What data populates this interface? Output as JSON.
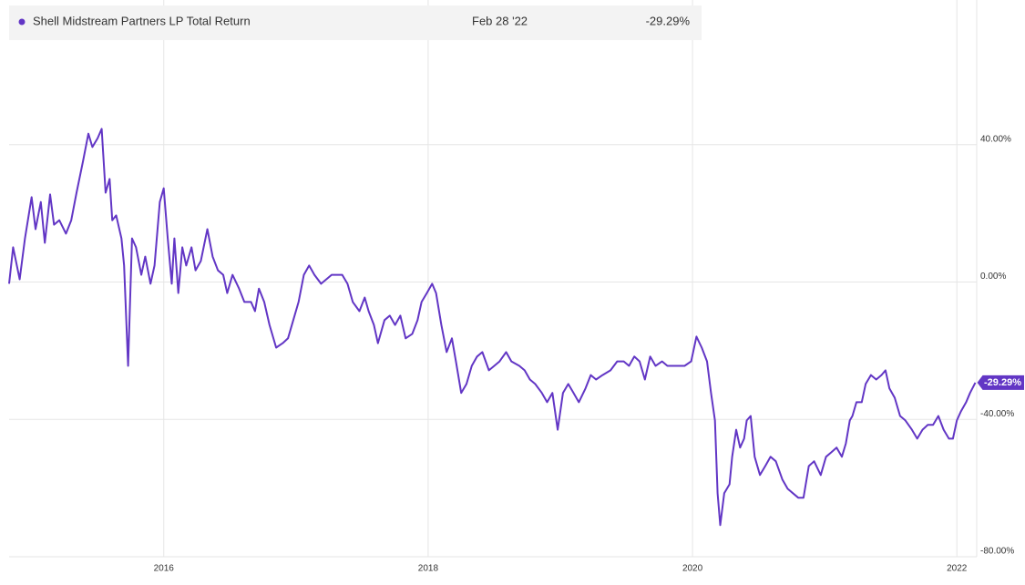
{
  "chart_data": {
    "type": "line",
    "series": [
      {
        "name": "Shell Midstream Partners LP Total Return",
        "color": "#6236c5",
        "end_date": "Feb 28 '22",
        "end_label": "-29.29%",
        "x": [
          2014.83,
          2014.86,
          2014.91,
          2014.95,
          2015.0,
          2015.03,
          2015.07,
          2015.1,
          2015.14,
          2015.17,
          2015.21,
          2015.26,
          2015.3,
          2015.34,
          2015.39,
          2015.43,
          2015.46,
          2015.5,
          2015.53,
          2015.56,
          2015.59,
          2015.61,
          2015.64,
          2015.68,
          2015.7,
          2015.73,
          2015.76,
          2015.79,
          2015.83,
          2015.86,
          2015.9,
          2015.93,
          2015.97,
          2016.0,
          2016.03,
          2016.06,
          2016.08,
          2016.11,
          2016.14,
          2016.17,
          2016.21,
          2016.24,
          2016.28,
          2016.33,
          2016.37,
          2016.41,
          2016.45,
          2016.48,
          2016.52,
          2016.57,
          2016.61,
          2016.66,
          2016.69,
          2016.72,
          2016.76,
          2016.8,
          2016.85,
          2016.9,
          2016.94,
          2016.98,
          2017.02,
          2017.06,
          2017.1,
          2017.14,
          2017.19,
          2017.23,
          2017.27,
          2017.31,
          2017.35,
          2017.39,
          2017.43,
          2017.48,
          2017.52,
          2017.55,
          2017.59,
          2017.62,
          2017.67,
          2017.71,
          2017.75,
          2017.79,
          2017.83,
          2017.88,
          2017.92,
          2017.95,
          2017.99,
          2018.03,
          2018.06,
          2018.1,
          2018.14,
          2018.18,
          2018.21,
          2018.25,
          2018.29,
          2018.33,
          2018.37,
          2018.41,
          2018.46,
          2018.5,
          2018.54,
          2018.59,
          2018.63,
          2018.69,
          2018.73,
          2018.77,
          2018.81,
          2018.86,
          2018.9,
          2018.94,
          2018.98,
          2019.02,
          2019.06,
          2019.1,
          2019.14,
          2019.19,
          2019.23,
          2019.27,
          2019.32,
          2019.38,
          2019.43,
          2019.48,
          2019.52,
          2019.56,
          2019.6,
          2019.64,
          2019.68,
          2019.72,
          2019.77,
          2019.81,
          2019.86,
          2019.9,
          2019.94,
          2019.99,
          2020.03,
          2020.07,
          2020.11,
          2020.14,
          2020.17,
          2020.19,
          2020.21,
          2020.24,
          2020.28,
          2020.3,
          2020.33,
          2020.36,
          2020.39,
          2020.41,
          2020.44,
          2020.47,
          2020.51,
          2020.55,
          2020.59,
          2020.63,
          2020.68,
          2020.72,
          2020.76,
          2020.8,
          2020.84,
          2020.88,
          2020.92,
          2020.97,
          2021.01,
          2021.05,
          2021.09,
          2021.13,
          2021.16,
          2021.19,
          2021.21,
          2021.24,
          2021.28,
          2021.31,
          2021.35,
          2021.39,
          2021.43,
          2021.46,
          2021.49,
          2021.53,
          2021.57,
          2021.61,
          2021.66,
          2021.7,
          2021.74,
          2021.78,
          2021.82,
          2021.86,
          2021.9,
          2021.94,
          2021.97,
          2022.0,
          2022.03,
          2022.07,
          2022.1,
          2022.14
        ],
        "values": [
          -0.5,
          10.1,
          0.8,
          12.7,
          24.7,
          15.4,
          23.3,
          11.4,
          25.5,
          16.7,
          18.0,
          14.1,
          18.0,
          26.0,
          35.3,
          43.2,
          39.3,
          41.9,
          44.6,
          26.0,
          30.0,
          18.0,
          19.4,
          12.7,
          4.8,
          -24.4,
          12.7,
          10.1,
          2.1,
          7.4,
          -0.5,
          4.8,
          23.3,
          27.3,
          12.7,
          -0.5,
          12.7,
          -3.2,
          10.1,
          4.8,
          10.1,
          3.4,
          6.1,
          15.4,
          7.4,
          3.4,
          2.1,
          -3.2,
          2.1,
          -1.9,
          -5.8,
          -5.8,
          -8.5,
          -1.9,
          -5.8,
          -12.5,
          -19.1,
          -17.8,
          -16.4,
          -11.1,
          -5.8,
          2.1,
          4.8,
          2.1,
          -0.5,
          0.8,
          2.1,
          2.1,
          2.1,
          -0.5,
          -5.8,
          -8.5,
          -4.5,
          -8.5,
          -12.5,
          -17.8,
          -11.1,
          -9.8,
          -12.5,
          -9.8,
          -16.4,
          -15.1,
          -11.1,
          -5.8,
          -3.2,
          -0.5,
          -3.2,
          -12.5,
          -20.4,
          -16.4,
          -23.1,
          -32.3,
          -29.7,
          -24.4,
          -21.7,
          -20.4,
          -25.7,
          -24.4,
          -23.1,
          -20.4,
          -23.1,
          -24.4,
          -25.7,
          -28.4,
          -29.7,
          -32.3,
          -35.0,
          -32.3,
          -43.0,
          -32.3,
          -29.7,
          -32.3,
          -35.0,
          -31.0,
          -27.1,
          -28.4,
          -27.1,
          -25.7,
          -23.1,
          -23.1,
          -24.4,
          -21.7,
          -23.1,
          -28.4,
          -21.7,
          -24.4,
          -23.1,
          -24.4,
          -24.4,
          -24.4,
          -24.4,
          -23.1,
          -15.9,
          -19.1,
          -23.1,
          -32.3,
          -40.3,
          -61.5,
          -70.8,
          -61.5,
          -58.9,
          -50.9,
          -43.0,
          -48.2,
          -45.6,
          -40.3,
          -39.0,
          -50.9,
          -56.2,
          -53.6,
          -50.9,
          -52.2,
          -57.5,
          -60.2,
          -61.5,
          -62.8,
          -62.8,
          -53.6,
          -52.2,
          -56.2,
          -50.9,
          -49.6,
          -48.2,
          -50.9,
          -47.0,
          -40.3,
          -39.0,
          -35.0,
          -35.0,
          -29.7,
          -27.1,
          -28.4,
          -27.1,
          -25.7,
          -31.0,
          -33.7,
          -39.0,
          -40.3,
          -43.0,
          -45.6,
          -43.0,
          -41.6,
          -41.6,
          -39.0,
          -43.0,
          -45.6,
          -45.6,
          -40.3,
          -37.7,
          -35.0,
          -32.3,
          -29.29
        ]
      }
    ],
    "xlim": [
      2014.83,
      2022.15
    ],
    "xticks": [
      2016,
      2018,
      2020,
      2022
    ],
    "ylim": [
      -80,
      80
    ],
    "yticks": [
      {
        "value": 40,
        "label": "40.00%"
      },
      {
        "value": 0,
        "label": "0.00%"
      },
      {
        "value": -40,
        "label": "-40.00%"
      },
      {
        "value": -80,
        "label": "-80.00%"
      }
    ],
    "grid": true
  }
}
